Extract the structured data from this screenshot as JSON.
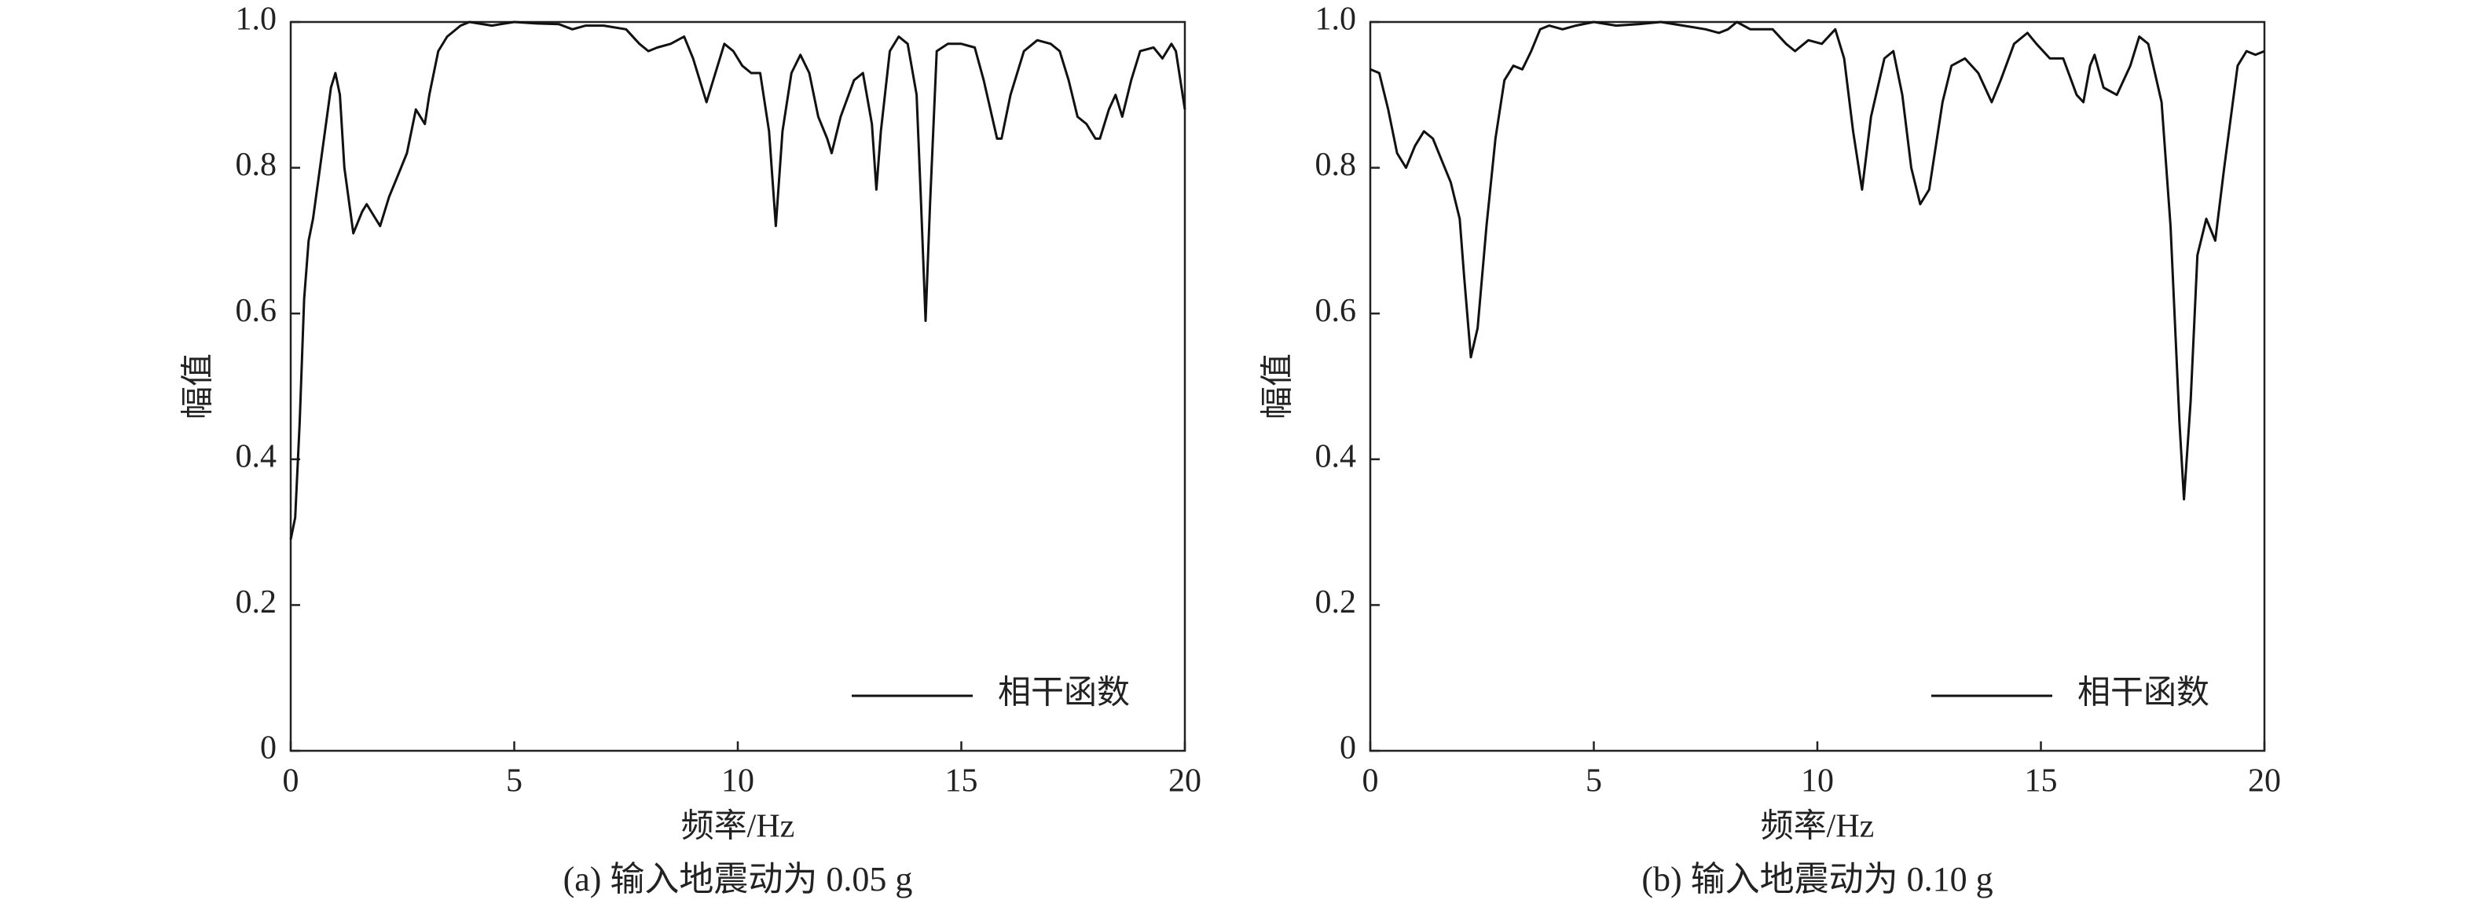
{
  "chart_data": [
    {
      "type": "line",
      "xlabel": "频率/Hz",
      "ylabel": "幅值",
      "caption": "(a) 输入地震动为 0.05 g",
      "xlim": [
        0,
        20
      ],
      "ylim": [
        0,
        1
      ],
      "xticks": [
        0,
        5,
        10,
        15,
        20
      ],
      "yticks": [
        0,
        0.2,
        0.4,
        0.6,
        0.8,
        {
          "value": 1,
          "label": "1.0"
        }
      ],
      "legend": "lower right",
      "x": [
        0,
        0.1,
        0.2,
        0.3,
        0.4,
        0.5,
        0.7,
        0.9,
        1.0,
        1.1,
        1.2,
        1.4,
        1.6,
        1.7,
        1.9,
        2.0,
        2.2,
        2.4,
        2.6,
        2.8,
        2.9,
        3.0,
        3.1,
        3.3,
        3.5,
        3.8,
        4.0,
        4.5,
        5,
        5.5,
        6,
        6.3,
        6.6,
        7,
        7.5,
        7.8,
        8,
        8.2,
        8.5,
        8.8,
        9.0,
        9.3,
        9.5,
        9.7,
        9.9,
        10.1,
        10.3,
        10.5,
        10.7,
        10.85,
        11.0,
        11.2,
        11.4,
        11.6,
        11.8,
        12.0,
        12.1,
        12.3,
        12.6,
        12.8,
        13.0,
        13.1,
        13.2,
        13.4,
        13.6,
        13.8,
        14.0,
        14.1,
        14.2,
        14.3,
        14.45,
        14.7,
        15,
        15.3,
        15.5,
        15.8,
        15.9,
        16.1,
        16.4,
        16.7,
        17.0,
        17.2,
        17.4,
        17.6,
        17.8,
        18.0,
        18.1,
        18.3,
        18.45,
        18.6,
        18.8,
        19.0,
        19.3,
        19.5,
        19.7,
        19.8,
        19.9,
        20
      ],
      "series": [
        {
          "name": "相干函数",
          "color": "#111111",
          "values": [
            0.29,
            0.32,
            0.45,
            0.62,
            0.7,
            0.73,
            0.82,
            0.91,
            0.93,
            0.9,
            0.8,
            0.71,
            0.74,
            0.75,
            0.73,
            0.72,
            0.76,
            0.79,
            0.82,
            0.88,
            0.87,
            0.86,
            0.9,
            0.96,
            0.98,
            0.995,
            1.0,
            0.995,
            1.0,
            0.998,
            0.997,
            0.99,
            0.995,
            0.995,
            0.99,
            0.97,
            0.96,
            0.965,
            0.97,
            0.98,
            0.95,
            0.89,
            0.93,
            0.97,
            0.96,
            0.94,
            0.93,
            0.93,
            0.85,
            0.72,
            0.85,
            0.93,
            0.955,
            0.93,
            0.87,
            0.84,
            0.82,
            0.87,
            0.92,
            0.93,
            0.86,
            0.77,
            0.85,
            0.96,
            0.98,
            0.97,
            0.9,
            0.75,
            0.59,
            0.75,
            0.96,
            0.97,
            0.97,
            0.965,
            0.92,
            0.84,
            0.84,
            0.9,
            0.96,
            0.975,
            0.97,
            0.96,
            0.92,
            0.87,
            0.86,
            0.84,
            0.84,
            0.88,
            0.9,
            0.87,
            0.92,
            0.96,
            0.965,
            0.95,
            0.97,
            0.96,
            0.92,
            0.88
          ]
        }
      ]
    },
    {
      "type": "line",
      "xlabel": "频率/Hz",
      "ylabel": "幅值",
      "caption": "(b) 输入地震动为 0.10 g",
      "xlim": [
        0,
        20
      ],
      "ylim": [
        0,
        1
      ],
      "xticks": [
        0,
        5,
        10,
        15,
        20
      ],
      "yticks": [
        0,
        0.2,
        0.4,
        0.6,
        0.8,
        {
          "value": 1,
          "label": "1.0"
        }
      ],
      "legend": "lower right",
      "x": [
        0,
        0.2,
        0.4,
        0.6,
        0.8,
        1.0,
        1.2,
        1.4,
        1.6,
        1.8,
        2.0,
        2.1,
        2.25,
        2.4,
        2.6,
        2.8,
        3.0,
        3.2,
        3.4,
        3.6,
        3.8,
        4.0,
        4.3,
        4.6,
        5,
        5.5,
        6,
        6.5,
        7,
        7.5,
        7.8,
        8.0,
        8.2,
        8.5,
        9.0,
        9.3,
        9.5,
        9.8,
        10.1,
        10.4,
        10.6,
        10.8,
        11.0,
        11.2,
        11.5,
        11.7,
        11.9,
        12.1,
        12.3,
        12.5,
        12.8,
        13.0,
        13.3,
        13.6,
        13.9,
        14.1,
        14.4,
        14.7,
        14.9,
        15.2,
        15.5,
        15.8,
        15.95,
        16.1,
        16.2,
        16.4,
        16.7,
        17.0,
        17.2,
        17.4,
        17.7,
        17.9,
        18.1,
        18.2,
        18.35,
        18.5,
        18.7,
        18.9,
        19.1,
        19.4,
        19.6,
        19.8,
        20
      ],
      "series": [
        {
          "name": "相干函数",
          "color": "#111111",
          "values": [
            0.935,
            0.93,
            0.88,
            0.82,
            0.8,
            0.83,
            0.85,
            0.84,
            0.81,
            0.78,
            0.73,
            0.65,
            0.54,
            0.58,
            0.72,
            0.84,
            0.92,
            0.94,
            0.935,
            0.96,
            0.99,
            0.995,
            0.99,
            0.995,
            1.0,
            0.995,
            0.997,
            1.0,
            0.995,
            0.99,
            0.985,
            0.99,
            1.0,
            0.99,
            0.99,
            0.97,
            0.96,
            0.975,
            0.97,
            0.99,
            0.95,
            0.85,
            0.77,
            0.87,
            0.95,
            0.96,
            0.9,
            0.8,
            0.75,
            0.77,
            0.89,
            0.94,
            0.95,
            0.93,
            0.89,
            0.92,
            0.97,
            0.985,
            0.97,
            0.95,
            0.95,
            0.9,
            0.89,
            0.94,
            0.955,
            0.91,
            0.9,
            0.94,
            0.98,
            0.97,
            0.89,
            0.72,
            0.45,
            0.345,
            0.48,
            0.68,
            0.73,
            0.7,
            0.8,
            0.94,
            0.96,
            0.955,
            0.96
          ]
        }
      ]
    }
  ]
}
